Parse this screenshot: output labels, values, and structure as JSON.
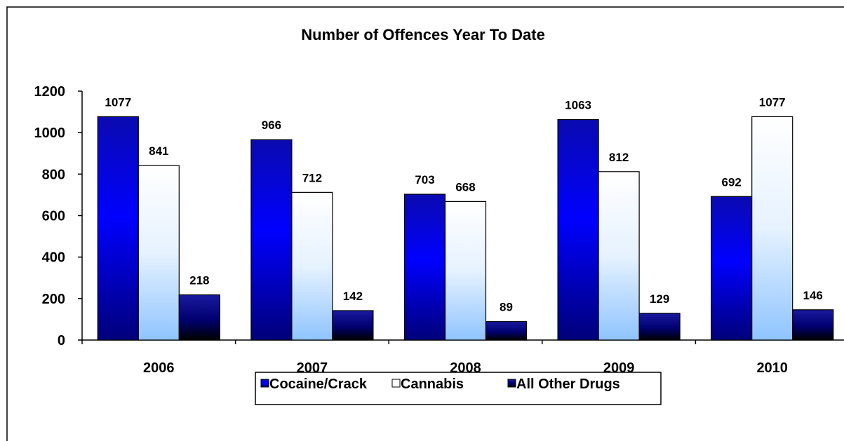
{
  "chart_data": {
    "type": "bar",
    "title": "Number of Offences Year To Date",
    "categories": [
      "2006",
      "2007",
      "2008",
      "2009",
      "2010"
    ],
    "series": [
      {
        "name": "Cocaine/Crack",
        "values": [
          1077,
          966,
          703,
          1063,
          692
        ],
        "color": "#0000ff"
      },
      {
        "name": "Cannabis",
        "values": [
          841,
          712,
          668,
          812,
          1077
        ],
        "color": "#ffffff"
      },
      {
        "name": "All Other Drugs",
        "values": [
          218,
          142,
          89,
          129,
          146
        ],
        "color": "#000080"
      }
    ],
    "ylim": [
      0,
      1200
    ],
    "yticks": [
      "0",
      "200",
      "400",
      "600",
      "800",
      "1000",
      "1200"
    ],
    "grid": false,
    "legend": "bottom"
  }
}
